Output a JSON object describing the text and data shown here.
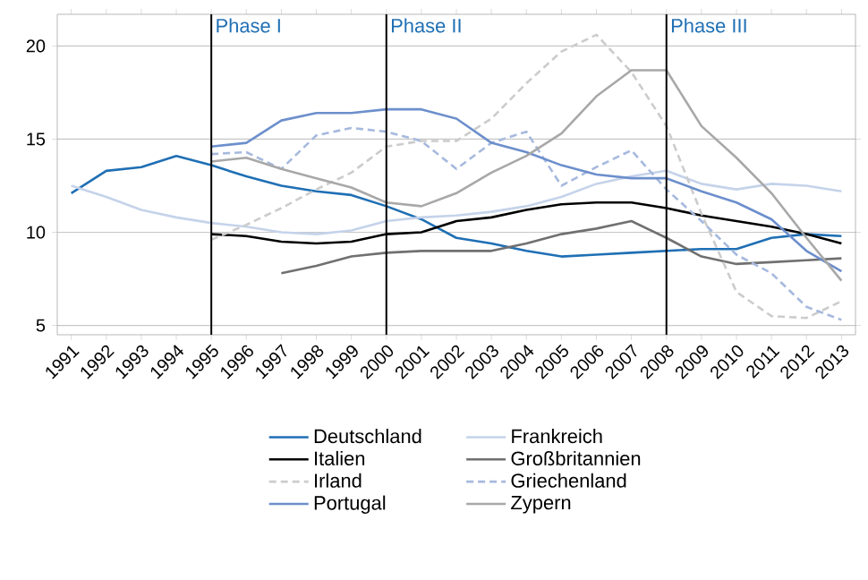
{
  "chart_data": {
    "type": "line",
    "x": [
      1991,
      1992,
      1993,
      1994,
      1995,
      1996,
      1997,
      1998,
      1999,
      2000,
      2001,
      2002,
      2003,
      2004,
      2005,
      2006,
      2007,
      2008,
      2009,
      2010,
      2011,
      2012,
      2013
    ],
    "xlim": [
      1990.6,
      2013.4
    ],
    "xticks": [
      1991,
      1992,
      1993,
      1994,
      1995,
      1996,
      1997,
      1998,
      1999,
      2000,
      2001,
      2002,
      2003,
      2004,
      2005,
      2006,
      2007,
      2008,
      2009,
      2010,
      2011,
      2012,
      2013
    ],
    "ylim": [
      4.5,
      21.7
    ],
    "yticks": [
      5,
      10,
      15,
      20
    ],
    "grid": "y",
    "legend": "bottom",
    "marker": "none",
    "ref_lines": [
      {
        "axis": "x",
        "value": 1995,
        "label": "Phase I",
        "color": "#000000"
      },
      {
        "axis": "x",
        "value": 2000,
        "label": "Phase II",
        "color": "#000000"
      },
      {
        "axis": "x",
        "value": 2008,
        "label": "Phase III",
        "color": "#000000"
      }
    ],
    "series": [
      {
        "name": "Deutschland",
        "color": "#1f6fb4",
        "line_style": "solid",
        "values": [
          12.1,
          13.3,
          13.5,
          14.1,
          13.6,
          13.0,
          12.5,
          12.2,
          12.0,
          11.4,
          10.7,
          9.7,
          9.4,
          9.0,
          8.7,
          8.8,
          8.9,
          9.0,
          9.1,
          9.1,
          9.7,
          9.9,
          9.8
        ]
      },
      {
        "name": "Frankreich",
        "color": "#c5d3ea",
        "line_style": "solid",
        "values": [
          12.5,
          11.9,
          11.2,
          10.8,
          10.5,
          10.3,
          10.0,
          9.9,
          10.1,
          10.6,
          10.8,
          10.9,
          11.1,
          11.4,
          11.9,
          12.6,
          13.0,
          13.3,
          12.6,
          12.3,
          12.6,
          12.5,
          12.2
        ]
      },
      {
        "name": "Italien",
        "color": "#000000",
        "line_style": "solid",
        "values": [
          null,
          null,
          null,
          null,
          9.9,
          9.8,
          9.5,
          9.4,
          9.5,
          9.9,
          10.0,
          10.6,
          10.8,
          11.2,
          11.5,
          11.6,
          11.6,
          11.3,
          10.9,
          10.6,
          10.3,
          9.9,
          9.4
        ]
      },
      {
        "name": "Großbritannien",
        "color": "#707070",
        "line_style": "solid",
        "values": [
          null,
          null,
          null,
          null,
          null,
          null,
          7.8,
          8.2,
          8.7,
          8.9,
          9.0,
          9.0,
          9.0,
          9.4,
          9.9,
          10.2,
          10.6,
          9.7,
          8.7,
          8.3,
          8.4,
          8.5,
          8.6
        ]
      },
      {
        "name": "Irland",
        "color": "#cccccc",
        "line_style": "dashed",
        "values": [
          null,
          null,
          null,
          null,
          9.6,
          10.4,
          11.3,
          12.3,
          13.2,
          14.6,
          14.9,
          14.9,
          16.1,
          18.0,
          19.7,
          20.6,
          18.6,
          15.7,
          11.0,
          6.8,
          5.5,
          5.4,
          6.3
        ]
      },
      {
        "name": "Griechenland",
        "color": "#a6b9de",
        "line_style": "dashed",
        "values": [
          null,
          null,
          null,
          null,
          14.2,
          14.3,
          13.4,
          15.2,
          15.6,
          15.4,
          14.9,
          13.4,
          14.8,
          15.4,
          12.5,
          13.5,
          14.4,
          12.3,
          10.6,
          8.8,
          7.8,
          6.0,
          5.3
        ]
      },
      {
        "name": "Portugal",
        "color": "#6c8fcc",
        "line_style": "solid",
        "values": [
          null,
          null,
          null,
          null,
          14.6,
          14.8,
          16.0,
          16.4,
          16.4,
          16.6,
          16.6,
          16.1,
          14.8,
          14.3,
          13.6,
          13.1,
          12.9,
          12.9,
          12.2,
          11.6,
          10.7,
          9.0,
          7.9
        ]
      },
      {
        "name": "Zypern",
        "color": "#a8a8a8",
        "line_style": "solid",
        "values": [
          null,
          null,
          null,
          null,
          13.8,
          14.0,
          13.4,
          12.9,
          12.4,
          11.6,
          11.4,
          12.1,
          13.2,
          14.1,
          15.3,
          17.3,
          18.7,
          18.7,
          15.7,
          14.0,
          12.1,
          9.7,
          7.4
        ]
      }
    ]
  }
}
